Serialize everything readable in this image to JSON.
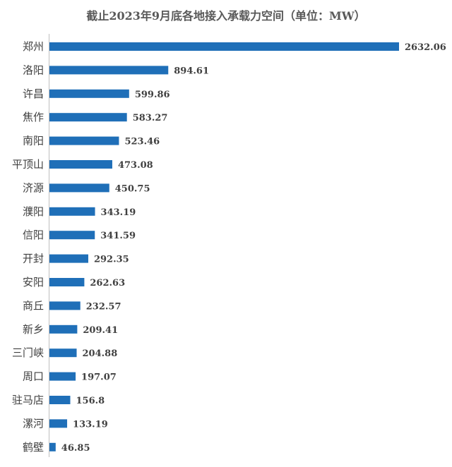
{
  "chart_data": {
    "type": "bar",
    "orientation": "horizontal",
    "title": "截止2023年9月底各地接入承载力空间（单位：MW）",
    "categories": [
      "郑州",
      "洛阳",
      "许昌",
      "焦作",
      "南阳",
      "平顶山",
      "济源",
      "濮阳",
      "信阳",
      "开封",
      "安阳",
      "商丘",
      "新乡",
      "三门峡",
      "周口",
      "驻马店",
      "漯河",
      "鹤壁"
    ],
    "series": [
      {
        "values": [
          2632.06,
          894.61,
          599.86,
          583.27,
          523.46,
          473.08,
          450.75,
          343.19,
          341.59,
          292.35,
          262.63,
          232.57,
          209.41,
          204.88,
          197.07,
          156.8,
          133.19,
          46.85
        ],
        "labels": [
          "2632.06",
          "894.61",
          "599.86",
          "583.27",
          "523.46",
          "473.08",
          "450.75",
          "343.19",
          "341.59",
          "292.35",
          "262.63",
          "232.57",
          "209.41",
          "204.88",
          "197.07",
          "156.8",
          "133.19",
          "46.85"
        ]
      }
    ],
    "xlim": [
      0,
      2632.06
    ],
    "grid": false,
    "legend": "none",
    "bar_color": "#1f6fb8",
    "axis_color": "#bfbfbf"
  }
}
